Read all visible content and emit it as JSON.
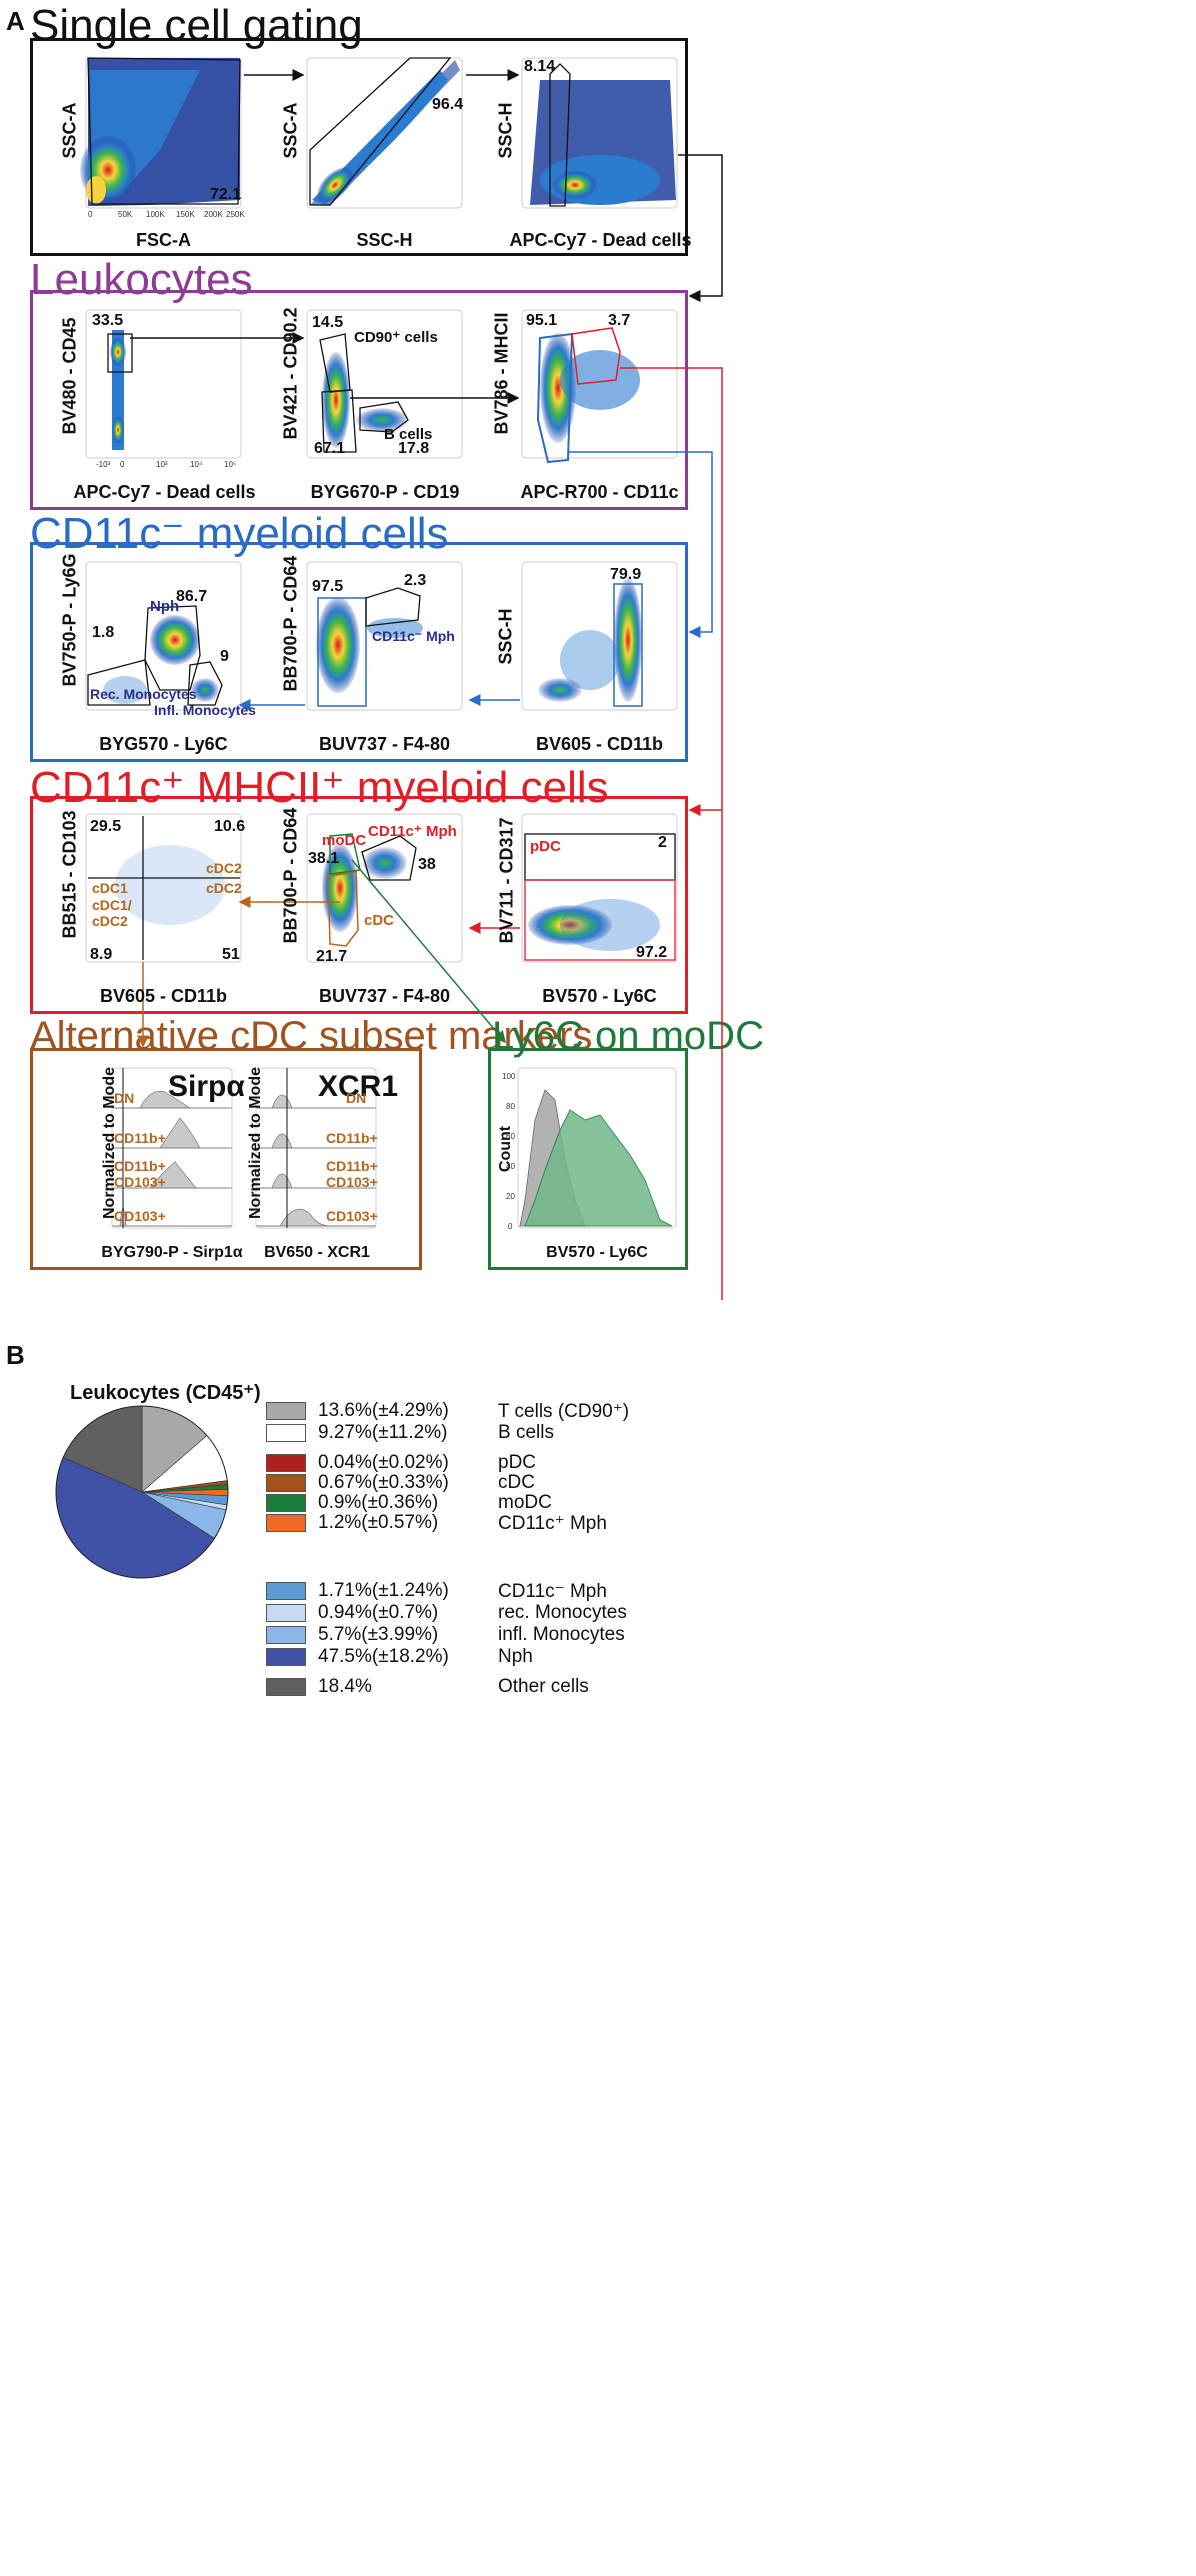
{
  "panel_a": {
    "letter": "A",
    "sections": {
      "single": "Single cell gating",
      "leuko": "Leukocytes",
      "myeloid_neg": "CD11c⁻ myeloid cells",
      "myeloid_pos": "CD11c⁺ MHCII⁺ myeloid cells",
      "alt": "Alternative cDC subset markers",
      "ly6c": "Ly6C on moDC"
    },
    "plots": {
      "p11": {
        "x": "FSC-A",
        "y": "SSC-A",
        "gate": "72.1"
      },
      "p12": {
        "x": "SSC-H",
        "y": "SSC-A",
        "gate": "96.4"
      },
      "p13": {
        "x": "APC-Cy7 - Dead cells",
        "y": "SSC-H",
        "gate": "8.14"
      },
      "p21": {
        "x": "APC-Cy7 - Dead cells",
        "y": "BV480 - CD45",
        "gate": "33.5"
      },
      "p22": {
        "x": "BYG670-P - CD19",
        "y": "BV421 - CD90.2",
        "g1": "14.5",
        "g2": "67.1",
        "g3": "17.8",
        "cd90": "CD90⁺ cells",
        "bcells": "B cells"
      },
      "p23": {
        "x": "APC-R700 - CD11c",
        "y": "BV786 - MHCII",
        "g1": "95.1",
        "g2": "3.7"
      },
      "p31": {
        "x": "BYG570 - Ly6C",
        "y": "BV750-P - Ly6G",
        "g1": "1.8",
        "g2": "86.7",
        "g3": "9",
        "nph": "Nph",
        "rec": "Rec. Monocytes",
        "infl": "Infl. Monocytes"
      },
      "p32": {
        "x": "BUV737 - F4-80",
        "y": "BB700-P - CD64",
        "g1": "97.5",
        "g2": "2.3",
        "mph": "CD11c⁻ Mph"
      },
      "p33": {
        "x": "BV605 - CD11b",
        "y": "SSC-H",
        "g1": "79.9"
      },
      "p41": {
        "x": "BV605 - CD11b",
        "y": "BB515 - CD103",
        "q1": "29.5",
        "q2": "10.6",
        "q3": "8.9",
        "q4": "51",
        "cdc1": "cDC1",
        "cdc1b": "cDC1/",
        "cdc2b": "cDC2",
        "cdc2a": "cDC2",
        "cdc2c": "cDC2"
      },
      "p42": {
        "x": "BUV737 - F4-80",
        "y": "BB700-P - CD64",
        "g1": "38.1",
        "g2": "38",
        "g3": "21.7",
        "modc": "moDC",
        "mph": "CD11c⁺ Mph",
        "cdc": "cDC"
      },
      "p43": {
        "x": "BV570 - Ly6C",
        "y": "BV711 - CD317",
        "g1": "2",
        "g2": "97.2",
        "pdc": "pDC"
      },
      "h1": {
        "x": "BYG790-P - Sirp1α",
        "y": "Normalized to Mode",
        "title": "Sirpα"
      },
      "h2": {
        "x": "BV650 - XCR1",
        "title": "XCR1"
      },
      "h3": {
        "x": "BV570 - Ly6C",
        "y": "Count"
      }
    },
    "hist_rows": [
      {
        "a": "DN",
        "b": ""
      },
      {
        "a": "CD11b+",
        "b": ""
      },
      {
        "a": "CD11b+",
        "b": "CD103+"
      },
      {
        "a": "CD103+",
        "b": ""
      }
    ],
    "ticks": {
      "lin": [
        "0",
        "50K",
        "100K",
        "150K",
        "200K",
        "250K"
      ],
      "log": [
        "-10³",
        "0",
        "10³",
        "10⁴",
        "10⁵"
      ],
      "count": [
        "0",
        "20",
        "40",
        "60",
        "80",
        "100"
      ]
    }
  },
  "panel_b": {
    "letter": "B",
    "title": "Leukocytes (CD45⁺)",
    "items": [
      {
        "value": "13.6%(±4.29%)",
        "label": "T cells (CD90⁺)",
        "pct": 13.6,
        "color": "#a8a8a8"
      },
      {
        "value": "9.27%(±11.2%)",
        "label": "B cells",
        "pct": 9.27,
        "color": "#ffffff"
      },
      {
        "value": "0.04%(±0.02%)",
        "label": "pDC",
        "pct": 0.04,
        "color": "#b11e1e"
      },
      {
        "value": "0.67%(±0.33%)",
        "label": "cDC",
        "pct": 0.67,
        "color": "#a8501c"
      },
      {
        "value": "0.9%(±0.36%)",
        "label": "moDC",
        "pct": 0.9,
        "color": "#1d7c3c"
      },
      {
        "value": "1.2%(±0.57%)",
        "label": "CD11c⁺ Mph",
        "pct": 1.2,
        "color": "#ef6a22"
      },
      {
        "value": "1.71%(±1.24%)",
        "label": "CD11c⁻ Mph",
        "pct": 1.71,
        "color": "#5b9bd5"
      },
      {
        "value": "0.94%(±0.7%)",
        "label": "rec. Monocytes",
        "pct": 0.94,
        "color": "#c6dcf2"
      },
      {
        "value": "5.7%(±3.99%)",
        "label": "infl. Monocytes",
        "pct": 5.7,
        "color": "#8ab7e6"
      },
      {
        "value": "47.5%(±18.2%)",
        "label": "Nph",
        "pct": 47.5,
        "color": "#4052a8"
      },
      {
        "value": "18.4%",
        "label": "Other cells",
        "pct": 18.4,
        "color": "#606060"
      }
    ]
  },
  "chart_data": {
    "type": "pie",
    "title": "Leukocytes (CD45⁺)",
    "categories": [
      "T cells (CD90⁺)",
      "B cells",
      "pDC",
      "cDC",
      "moDC",
      "CD11c⁺ Mph",
      "CD11c⁻ Mph",
      "rec. Monocytes",
      "infl. Monocytes",
      "Nph",
      "Other cells"
    ],
    "values": [
      13.6,
      9.27,
      0.04,
      0.67,
      0.9,
      1.2,
      1.71,
      0.94,
      5.7,
      47.5,
      18.4
    ],
    "errors": [
      4.29,
      11.2,
      0.02,
      0.33,
      0.36,
      0.57,
      1.24,
      0.7,
      3.99,
      18.2,
      null
    ],
    "legend": "right"
  },
  "colors": {
    "single": "#111111",
    "leuko": "#8e3b96",
    "myeloid_neg": "#2a6cc3",
    "myeloid_pos": "#e11d26",
    "alt": "#a0521f",
    "ly6c": "#1f7a3a",
    "navy": "#2a2f8f",
    "brown": "#b5651d"
  }
}
